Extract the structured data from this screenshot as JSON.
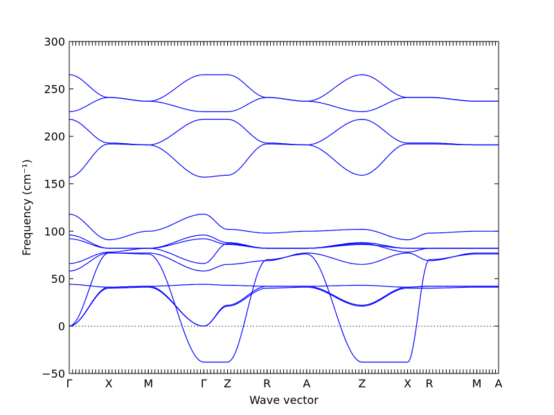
{
  "chart_data": {
    "type": "line",
    "xlabel": "Wave vector",
    "ylabel": "Frequency (cm⁻¹)",
    "ylim": [
      -50,
      300
    ],
    "yticks": [
      -50,
      0,
      50,
      100,
      150,
      200,
      250,
      300
    ],
    "zero_line": 0,
    "line_color": "#0000ff",
    "high_symbol_points": [
      {
        "label": "Γ",
        "x": 0.0
      },
      {
        "label": "X",
        "x": 1.0
      },
      {
        "label": "M",
        "x": 2.0
      },
      {
        "label": "Γ",
        "x": 3.4
      },
      {
        "label": "Z",
        "x": 4.0
      },
      {
        "label": "R",
        "x": 5.0
      },
      {
        "label": "A",
        "x": 6.0
      },
      {
        "label": "Z",
        "x": 7.4
      },
      {
        "label": "X",
        "x": 8.55
      },
      {
        "label": "R",
        "x": 9.1
      },
      {
        "label": "M",
        "x": 10.3
      },
      {
        "label": "A",
        "x": 10.85
      }
    ],
    "series": [
      {
        "x": [
          0,
          1,
          2,
          3.4,
          4,
          5,
          6,
          7.4,
          8.55,
          9.1,
          10.3,
          10.85
        ],
        "values": [
          265,
          241,
          237,
          265,
          265,
          241,
          237,
          265,
          241,
          241,
          237,
          237
        ]
      },
      {
        "x": [
          0,
          1,
          2,
          3.4,
          4,
          5,
          6,
          7.4,
          8.55,
          9.1,
          10.3,
          10.85
        ],
        "values": [
          226,
          241,
          237,
          226,
          226,
          241,
          237,
          226,
          241,
          241,
          237,
          237
        ]
      },
      {
        "x": [
          0,
          1,
          2,
          3.4,
          4,
          5,
          6,
          7.4,
          8.55,
          9.1,
          10.3,
          10.85
        ],
        "values": [
          218,
          193,
          191,
          218,
          218,
          193,
          191,
          218,
          193,
          193,
          191,
          191
        ]
      },
      {
        "x": [
          0,
          1,
          2,
          3.4,
          4,
          5,
          6,
          7.4,
          8.55,
          9.1,
          10.3,
          10.85
        ],
        "values": [
          157,
          192,
          191,
          157,
          159,
          192,
          191,
          159,
          192,
          192,
          191,
          191
        ]
      },
      {
        "x": [
          0,
          1,
          2,
          3.4,
          4,
          5,
          6,
          7.4,
          8.55,
          9.1,
          10.3,
          10.85
        ],
        "values": [
          118,
          91,
          100,
          118,
          102,
          98,
          100,
          102,
          91,
          98,
          100,
          100
        ]
      },
      {
        "x": [
          0,
          1,
          2,
          3.4,
          4,
          5,
          6,
          7.4,
          8.55,
          9.1,
          10.3,
          10.85
        ],
        "values": [
          96,
          82,
          82,
          96,
          88,
          82,
          82,
          88,
          82,
          82,
          82,
          82
        ]
      },
      {
        "x": [
          0,
          1,
          2,
          3.4,
          4,
          5,
          6,
          7.4,
          8.55,
          9.1,
          10.3,
          10.85
        ],
        "values": [
          92,
          82,
          82,
          92,
          86,
          82,
          82,
          86,
          82,
          82,
          82,
          82
        ]
      },
      {
        "x": [
          0,
          1,
          2,
          3.4,
          4,
          5,
          6,
          7.4,
          8.55,
          9.1,
          10.3,
          10.85
        ],
        "values": [
          66,
          78,
          82,
          66,
          87,
          82,
          82,
          87,
          78,
          82,
          82,
          82
        ]
      },
      {
        "x": [
          0,
          1,
          2,
          3.4,
          4,
          5,
          6,
          7.4,
          8.55,
          9.1,
          10.3,
          10.85
        ],
        "values": [
          58,
          77,
          77,
          58,
          65,
          69,
          77,
          65,
          77,
          69,
          77,
          77
        ]
      },
      {
        "x": [
          0,
          1,
          2,
          3.4,
          4,
          5,
          6,
          7.4,
          8.55,
          9.1,
          10.3,
          10.85
        ],
        "values": [
          44,
          41,
          42,
          44,
          43,
          42,
          42,
          43,
          41,
          42,
          42,
          42
        ]
      },
      {
        "x": [
          0,
          1,
          2,
          3.4,
          4,
          5,
          6,
          7.4,
          8.55,
          9.1,
          10.3,
          10.85
        ],
        "values": [
          0,
          41,
          42,
          0,
          22,
          42,
          42,
          22,
          41,
          42,
          42,
          42
        ]
      },
      {
        "x": [
          0,
          1,
          2,
          3.4,
          4,
          5,
          6,
          7.4,
          8.55,
          9.1,
          10.3,
          10.85
        ],
        "values": [
          0,
          40,
          41,
          0,
          21,
          40,
          41,
          21,
          40,
          40,
          41,
          41
        ]
      },
      {
        "x": [
          0,
          1,
          2,
          3.4,
          4,
          5,
          6,
          7.4,
          8.55,
          9.1,
          10.3,
          10.85
        ],
        "values": [
          0,
          77,
          76,
          -38,
          -38,
          70,
          76,
          -38,
          -38,
          70,
          76,
          76
        ]
      }
    ]
  }
}
